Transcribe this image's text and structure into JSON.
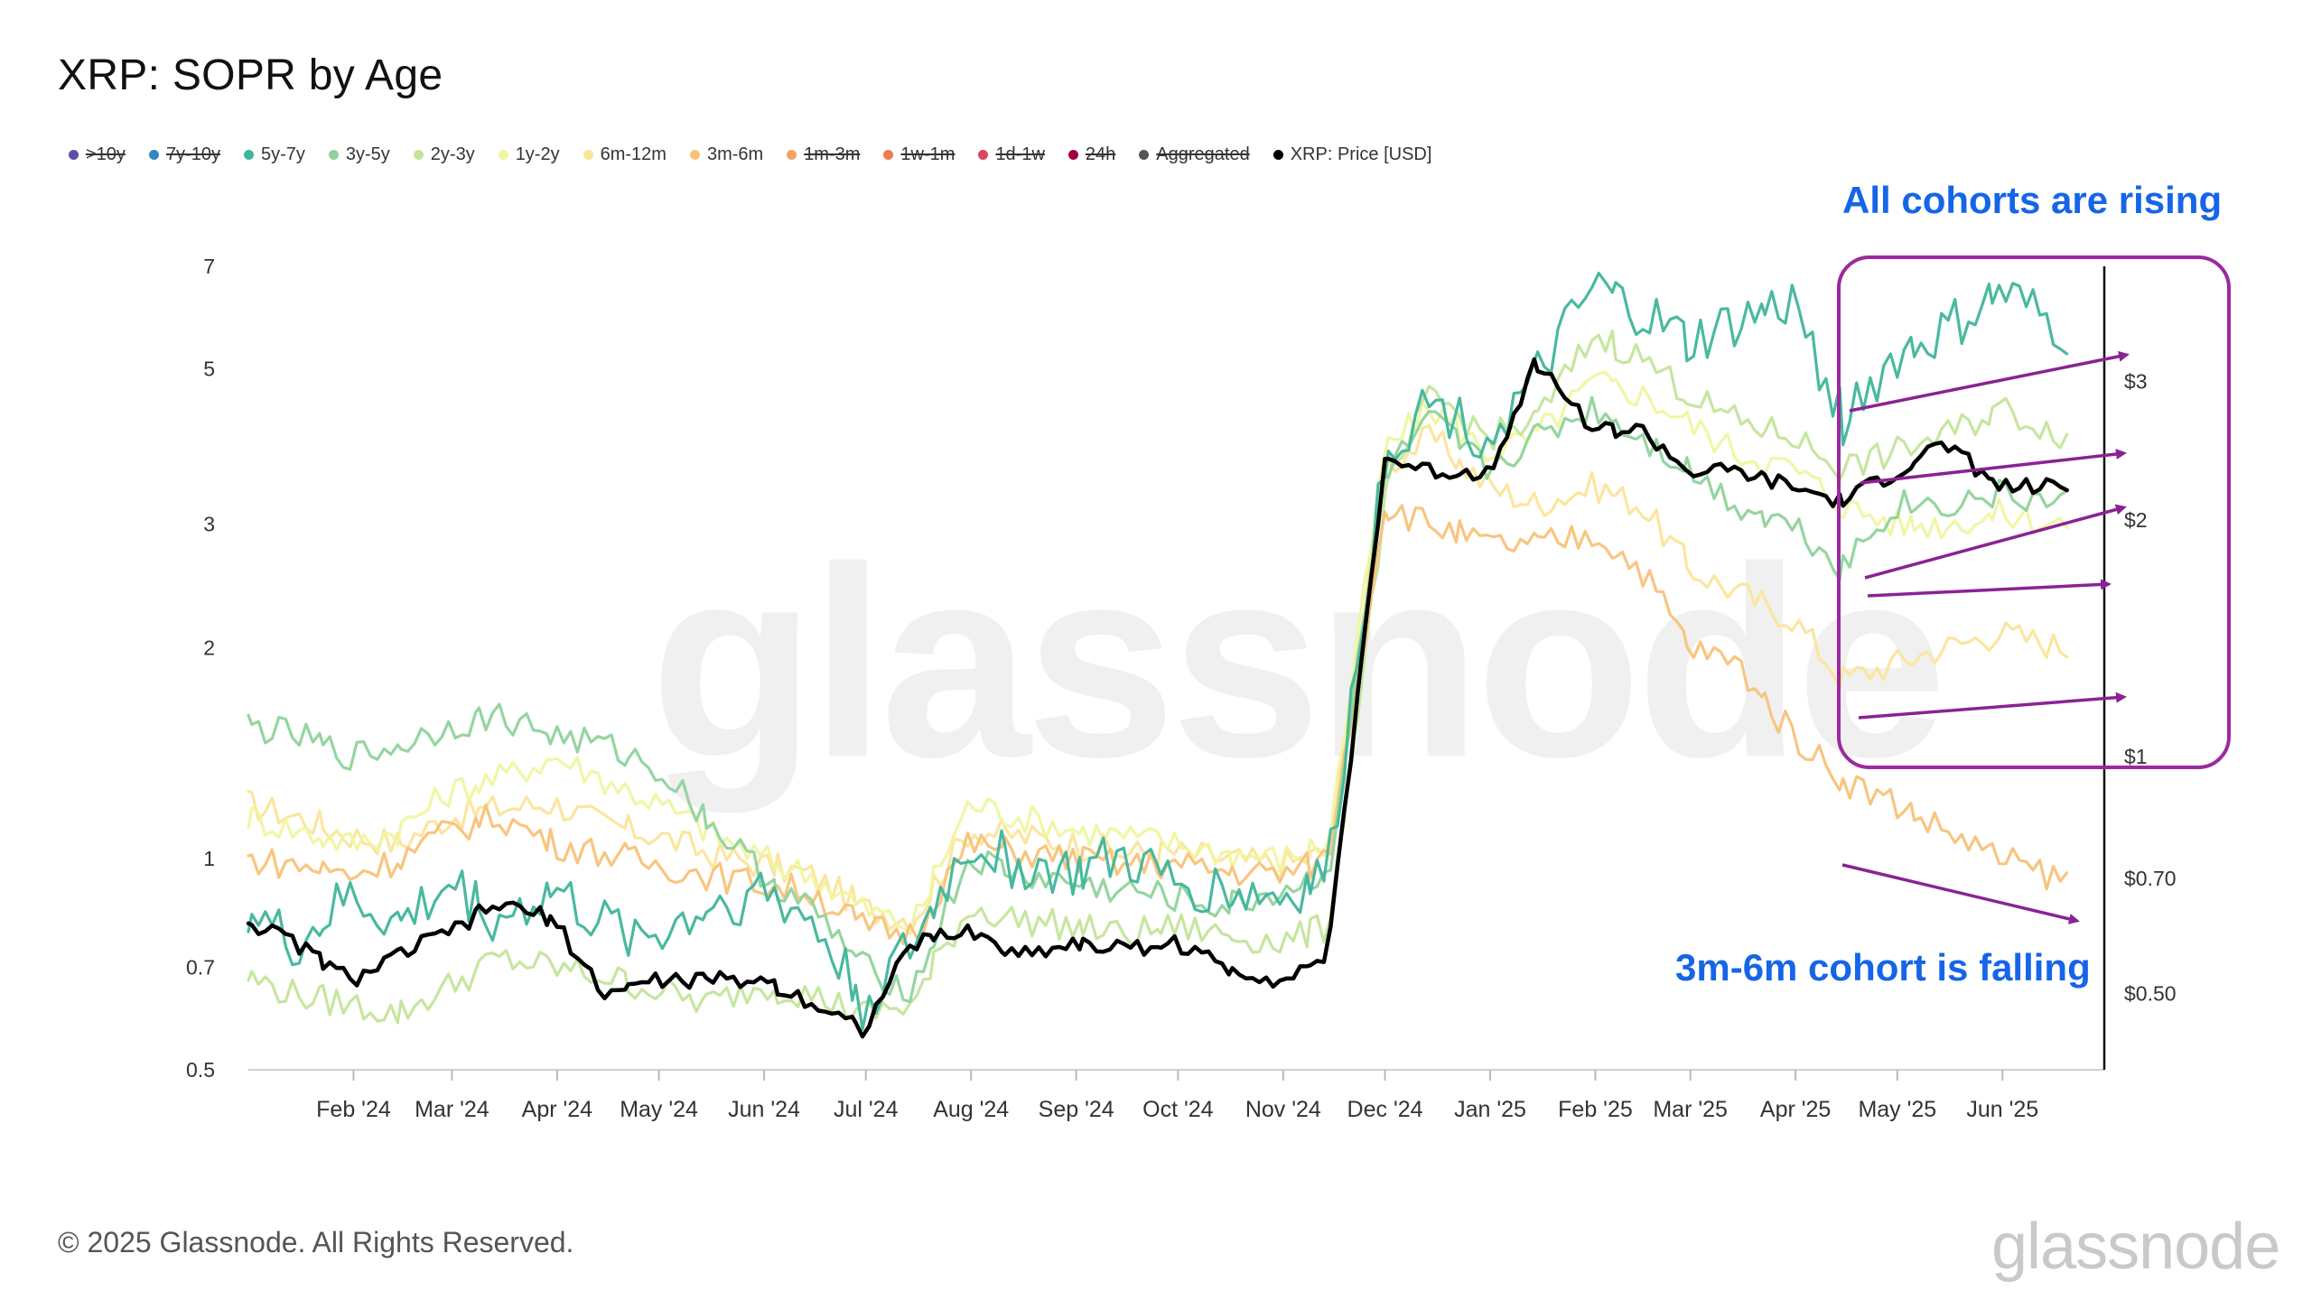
{
  "title": "XRP: SOPR by Age",
  "footer": "© 2025 Glassnode. All Rights Reserved.",
  "logo": "glassnode",
  "watermark": "glassnode",
  "annotations": {
    "rising": "All cohorts are rising",
    "falling": "3m-6m cohort is falling"
  },
  "colors": {
    "accent_annotation": "#1565e8",
    "highlight_box": "#9b2a9e",
    "arrow": "#8a2294"
  },
  "legend": [
    {
      "label": ">10y",
      "color": "#5e4fa2",
      "enabled": false
    },
    {
      "label": "7y-10y",
      "color": "#3288bd",
      "enabled": false
    },
    {
      "label": "5y-7y",
      "color": "#3fb59b",
      "enabled": true
    },
    {
      "label": "3y-5y",
      "color": "#8fd39b",
      "enabled": true
    },
    {
      "label": "2y-3y",
      "color": "#c3e59a",
      "enabled": true
    },
    {
      "label": "1y-2y",
      "color": "#f0f5a0",
      "enabled": true
    },
    {
      "label": "6m-12m",
      "color": "#fbe59a",
      "enabled": true
    },
    {
      "label": "3m-6m",
      "color": "#f8c27a",
      "enabled": true
    },
    {
      "label": "1m-3m",
      "color": "#f4a261",
      "enabled": false
    },
    {
      "label": "1w-1m",
      "color": "#ee7a4d",
      "enabled": false
    },
    {
      "label": "1d-1w",
      "color": "#d9475a",
      "enabled": false
    },
    {
      "label": "24h",
      "color": "#9e0142",
      "enabled": false
    },
    {
      "label": "Aggregated",
      "color": "#555555",
      "enabled": false
    },
    {
      "label": "XRP: Price [USD]",
      "color": "#000000",
      "enabled": true
    }
  ],
  "chart_data": {
    "type": "line",
    "title": "XRP: SOPR by Age",
    "y_left": {
      "scale": "log",
      "range": [
        0.5,
        7
      ],
      "ticks": [
        0.5,
        0.7,
        1,
        2,
        3,
        5,
        7
      ],
      "tick_labels": [
        "0.5",
        "0.7",
        "1",
        "2",
        "3",
        "5",
        "7"
      ]
    },
    "y_right": {
      "scale": "log",
      "range": [
        0.4,
        4.2
      ],
      "ticks": [
        0.5,
        0.7,
        1,
        2,
        3
      ],
      "tick_labels": [
        "$0.50",
        "$0.70",
        "$1",
        "$2",
        "$3"
      ]
    },
    "x_range": [
      "2024-01-01",
      "2025-07-01"
    ],
    "x_ticks": [
      {
        "date": "2024-02-01",
        "label": "Feb '24"
      },
      {
        "date": "2024-03-01",
        "label": "Mar '24"
      },
      {
        "date": "2024-04-01",
        "label": "Apr '24"
      },
      {
        "date": "2024-05-01",
        "label": "May '24"
      },
      {
        "date": "2024-06-01",
        "label": "Jun '24"
      },
      {
        "date": "2024-07-01",
        "label": "Jul '24"
      },
      {
        "date": "2024-08-01",
        "label": "Aug '24"
      },
      {
        "date": "2024-09-01",
        "label": "Sep '24"
      },
      {
        "date": "2024-10-01",
        "label": "Oct '24"
      },
      {
        "date": "2024-11-01",
        "label": "Nov '24"
      },
      {
        "date": "2024-12-01",
        "label": "Dec '24"
      },
      {
        "date": "2025-01-01",
        "label": "Jan '25"
      },
      {
        "date": "2025-02-01",
        "label": "Feb '25"
      },
      {
        "date": "2025-03-01",
        "label": "Mar '25"
      },
      {
        "date": "2025-04-01",
        "label": "Apr '25"
      },
      {
        "date": "2025-05-01",
        "label": "May '25"
      },
      {
        "date": "2025-06-01",
        "label": "Jun '25"
      }
    ],
    "grid": false,
    "legend_position": "top-left",
    "series": [
      {
        "name": "5y-7y",
        "axis": "left",
        "color": "#3fb59b",
        "dates": [
          "2024-01-01",
          "2024-01-15",
          "2024-02-01",
          "2024-02-15",
          "2024-03-01",
          "2024-03-15",
          "2024-04-01",
          "2024-04-15",
          "2024-05-01",
          "2024-05-15",
          "2024-06-01",
          "2024-06-15",
          "2024-07-01",
          "2024-07-15",
          "2024-08-01",
          "2024-08-15",
          "2024-09-01",
          "2024-09-15",
          "2024-10-01",
          "2024-10-15",
          "2024-11-01",
          "2024-11-15",
          "2024-12-01",
          "2024-12-15",
          "2025-01-01",
          "2025-01-15",
          "2025-02-01",
          "2025-02-15",
          "2025-03-01",
          "2025-03-15",
          "2025-04-01",
          "2025-04-15",
          "2025-05-01",
          "2025-05-15",
          "2025-06-01",
          "2025-06-20"
        ],
        "values": [
          0.85,
          0.75,
          0.88,
          0.8,
          0.92,
          0.82,
          0.9,
          0.8,
          0.78,
          0.85,
          0.9,
          0.82,
          0.62,
          0.75,
          1.05,
          0.98,
          0.95,
          1.0,
          0.92,
          0.9,
          0.88,
          0.95,
          3.8,
          4.5,
          4.0,
          4.8,
          6.5,
          6.0,
          5.4,
          5.8,
          6.2,
          4.2,
          5.2,
          5.6,
          6.4,
          5.6
        ]
      },
      {
        "name": "3y-5y",
        "axis": "left",
        "color": "#8fd39b",
        "dates": [
          "2024-01-01",
          "2024-01-15",
          "2024-02-01",
          "2024-02-15",
          "2024-03-01",
          "2024-03-15",
          "2024-04-01",
          "2024-04-15",
          "2024-05-01",
          "2024-05-15",
          "2024-06-01",
          "2024-06-15",
          "2024-07-01",
          "2024-07-15",
          "2024-08-01",
          "2024-08-15",
          "2024-09-01",
          "2024-09-15",
          "2024-10-01",
          "2024-10-15",
          "2024-11-01",
          "2024-11-15",
          "2024-12-01",
          "2024-12-15",
          "2025-01-01",
          "2025-01-15",
          "2025-02-01",
          "2025-02-15",
          "2025-03-01",
          "2025-03-15",
          "2025-04-01",
          "2025-04-15",
          "2025-05-01",
          "2025-05-15",
          "2025-06-01",
          "2025-06-20"
        ],
        "values": [
          1.55,
          1.5,
          1.4,
          1.45,
          1.55,
          1.6,
          1.5,
          1.45,
          1.35,
          1.15,
          0.95,
          0.85,
          0.7,
          0.65,
          1.0,
          0.95,
          0.92,
          0.9,
          0.88,
          0.85,
          0.9,
          0.95,
          3.5,
          4.2,
          3.6,
          4.0,
          4.4,
          4.0,
          3.6,
          3.2,
          3.0,
          2.6,
          3.2,
          3.2,
          3.3,
          3.2
        ]
      },
      {
        "name": "2y-3y",
        "axis": "left",
        "color": "#c3e59a",
        "dates": [
          "2024-01-01",
          "2024-01-15",
          "2024-02-01",
          "2024-02-15",
          "2024-03-01",
          "2024-03-15",
          "2024-04-01",
          "2024-04-15",
          "2024-05-01",
          "2024-05-15",
          "2024-06-01",
          "2024-06-15",
          "2024-07-01",
          "2024-07-15",
          "2024-08-01",
          "2024-08-15",
          "2024-09-01",
          "2024-09-15",
          "2024-10-01",
          "2024-10-15",
          "2024-11-01",
          "2024-11-15",
          "2024-12-01",
          "2024-12-15",
          "2025-01-01",
          "2025-01-15",
          "2025-02-01",
          "2025-02-15",
          "2025-03-01",
          "2025-03-15",
          "2025-04-01",
          "2025-04-15",
          "2025-05-01",
          "2025-05-15",
          "2025-06-01",
          "2025-06-20"
        ],
        "values": [
          0.68,
          0.64,
          0.62,
          0.6,
          0.66,
          0.72,
          0.7,
          0.68,
          0.65,
          0.62,
          0.66,
          0.64,
          0.6,
          0.62,
          0.85,
          0.82,
          0.8,
          0.78,
          0.8,
          0.78,
          0.76,
          0.8,
          3.2,
          4.6,
          4.0,
          4.2,
          5.6,
          5.2,
          4.6,
          4.2,
          4.0,
          3.6,
          3.8,
          4.0,
          4.4,
          4.0
        ]
      },
      {
        "name": "1y-2y",
        "axis": "left",
        "color": "#f0f5a0",
        "dates": [
          "2024-01-01",
          "2024-01-15",
          "2024-02-01",
          "2024-02-15",
          "2024-03-01",
          "2024-03-15",
          "2024-04-01",
          "2024-04-15",
          "2024-05-01",
          "2024-05-15",
          "2024-06-01",
          "2024-06-15",
          "2024-07-01",
          "2024-07-15",
          "2024-08-01",
          "2024-08-15",
          "2024-09-01",
          "2024-09-15",
          "2024-10-01",
          "2024-10-15",
          "2024-11-01",
          "2024-11-15",
          "2024-12-01",
          "2024-12-15",
          "2025-01-01",
          "2025-01-15",
          "2025-02-01",
          "2025-02-15",
          "2025-03-01",
          "2025-03-15",
          "2025-04-01",
          "2025-04-15",
          "2025-05-01",
          "2025-05-15",
          "2025-06-01",
          "2025-06-20"
        ],
        "values": [
          1.15,
          1.1,
          1.05,
          1.1,
          1.25,
          1.3,
          1.4,
          1.3,
          1.2,
          1.1,
          1.0,
          0.95,
          0.85,
          0.8,
          1.2,
          1.15,
          1.1,
          1.08,
          1.05,
          1.02,
          1.0,
          1.05,
          3.8,
          4.4,
          3.8,
          4.0,
          4.8,
          4.6,
          4.2,
          3.8,
          3.6,
          3.2,
          3.0,
          3.0,
          3.1,
          3.0
        ]
      },
      {
        "name": "6m-12m",
        "axis": "left",
        "color": "#fbe59a",
        "dates": [
          "2024-01-01",
          "2024-01-15",
          "2024-02-01",
          "2024-02-15",
          "2024-03-01",
          "2024-03-15",
          "2024-04-01",
          "2024-04-15",
          "2024-05-01",
          "2024-05-15",
          "2024-06-01",
          "2024-06-15",
          "2024-07-01",
          "2024-07-15",
          "2024-08-01",
          "2024-08-15",
          "2024-09-01",
          "2024-09-15",
          "2024-10-01",
          "2024-10-15",
          "2024-11-01",
          "2024-11-15",
          "2024-12-01",
          "2024-12-15",
          "2025-01-01",
          "2025-01-15",
          "2025-02-01",
          "2025-02-15",
          "2025-03-01",
          "2025-03-15",
          "2025-04-01",
          "2025-04-15",
          "2025-05-01",
          "2025-05-15",
          "2025-06-01",
          "2025-06-20"
        ],
        "values": [
          1.2,
          1.15,
          1.08,
          1.05,
          1.15,
          1.18,
          1.2,
          1.12,
          1.08,
          1.02,
          0.98,
          0.95,
          0.85,
          0.82,
          1.1,
          1.08,
          1.05,
          1.02,
          1.02,
          1.0,
          0.98,
          1.02,
          3.6,
          4.0,
          3.4,
          3.2,
          3.4,
          3.2,
          2.6,
          2.4,
          2.2,
          1.8,
          1.9,
          2.0,
          2.1,
          2.0
        ]
      },
      {
        "name": "3m-6m",
        "axis": "left",
        "color": "#f8c27a",
        "dates": [
          "2024-01-01",
          "2024-01-15",
          "2024-02-01",
          "2024-02-15",
          "2024-03-01",
          "2024-03-15",
          "2024-04-01",
          "2024-04-15",
          "2024-05-01",
          "2024-05-15",
          "2024-06-01",
          "2024-06-15",
          "2024-07-01",
          "2024-07-15",
          "2024-08-01",
          "2024-08-15",
          "2024-09-01",
          "2024-09-15",
          "2024-10-01",
          "2024-10-15",
          "2024-11-01",
          "2024-11-15",
          "2024-12-01",
          "2024-12-15",
          "2025-01-01",
          "2025-01-15",
          "2025-02-01",
          "2025-02-15",
          "2025-03-01",
          "2025-03-15",
          "2025-04-01",
          "2025-04-15",
          "2025-05-01",
          "2025-05-15",
          "2025-06-01",
          "2025-06-20"
        ],
        "values": [
          1.0,
          0.98,
          0.95,
          1.0,
          1.1,
          1.15,
          1.05,
          1.02,
          0.98,
          0.95,
          0.92,
          0.9,
          0.8,
          0.78,
          1.05,
          1.02,
          1.0,
          0.98,
          0.98,
          0.96,
          0.95,
          1.0,
          3.2,
          3.0,
          2.8,
          2.8,
          2.9,
          2.6,
          2.0,
          1.9,
          1.5,
          1.3,
          1.2,
          1.1,
          1.0,
          0.93
        ]
      },
      {
        "name": "XRP: Price [USD]",
        "axis": "right",
        "color": "#000000",
        "dates": [
          "2024-01-01",
          "2024-01-15",
          "2024-02-01",
          "2024-02-15",
          "2024-03-01",
          "2024-03-15",
          "2024-04-01",
          "2024-04-15",
          "2024-05-01",
          "2024-05-15",
          "2024-06-01",
          "2024-06-15",
          "2024-07-01",
          "2024-07-15",
          "2024-08-01",
          "2024-08-15",
          "2024-09-01",
          "2024-09-15",
          "2024-10-01",
          "2024-10-15",
          "2024-11-01",
          "2024-11-15",
          "2024-12-01",
          "2024-12-15",
          "2025-01-01",
          "2025-01-15",
          "2025-02-01",
          "2025-02-15",
          "2025-03-01",
          "2025-03-15",
          "2025-04-01",
          "2025-04-15",
          "2025-05-01",
          "2025-05-15",
          "2025-06-01",
          "2025-06-20"
        ],
        "values": [
          0.62,
          0.58,
          0.52,
          0.56,
          0.6,
          0.65,
          0.62,
          0.5,
          0.52,
          0.52,
          0.52,
          0.49,
          0.45,
          0.58,
          0.6,
          0.56,
          0.58,
          0.57,
          0.58,
          0.54,
          0.52,
          0.56,
          2.4,
          2.3,
          2.3,
          3.2,
          2.6,
          2.6,
          2.3,
          2.3,
          2.2,
          2.1,
          2.3,
          2.5,
          2.2,
          2.2
        ]
      }
    ]
  }
}
